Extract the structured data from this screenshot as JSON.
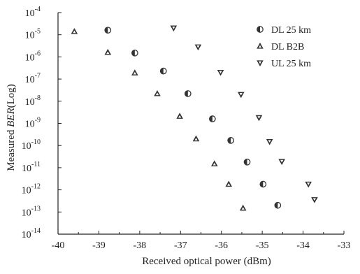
{
  "chart_data": {
    "type": "scatter",
    "xlabel": "Received optical power (dBm)",
    "ylabel_prefix": "Measured ",
    "ylabel_italic": "BER",
    "ylabel_suffix": "(Log)",
    "xlim": [
      -40,
      -33
    ],
    "ylim_exp": [
      -14,
      -4
    ],
    "y_scale": "log",
    "grid": false,
    "legend_position": "top-right",
    "x_ticks": [
      "-40",
      "-39",
      "-38",
      "-37",
      "-36",
      "-35",
      "-34",
      "-33"
    ],
    "y_ticks": [
      {
        "base": "10",
        "exp": "-4"
      },
      {
        "base": "10",
        "exp": "-5"
      },
      {
        "base": "10",
        "exp": "-6"
      },
      {
        "base": "10",
        "exp": "-7"
      },
      {
        "base": "10",
        "exp": "-8"
      },
      {
        "base": "10",
        "exp": "-9"
      },
      {
        "base": "10",
        "exp": "-10"
      },
      {
        "base": "10",
        "exp": "-11"
      },
      {
        "base": "10",
        "exp": "-12"
      },
      {
        "base": "10",
        "exp": "-13"
      },
      {
        "base": "10",
        "exp": "-14"
      }
    ],
    "series": [
      {
        "name": "DL 25 km",
        "marker": "half-circle",
        "points": [
          {
            "x": -38.78,
            "y": 1.6e-05
          },
          {
            "x": -38.12,
            "y": 1.5e-06
          },
          {
            "x": -37.42,
            "y": 2.3e-07
          },
          {
            "x": -36.82,
            "y": 2.2e-08
          },
          {
            "x": -36.22,
            "y": 1.6e-09
          },
          {
            "x": -35.77,
            "y": 1.7e-10
          },
          {
            "x": -35.37,
            "y": 1.8e-11
          },
          {
            "x": -34.98,
            "y": 1.8e-12
          },
          {
            "x": -34.62,
            "y": 2e-13
          }
        ]
      },
      {
        "name": "DL B2B",
        "marker": "triangle-up",
        "points": [
          {
            "x": -39.6,
            "y": 1.4e-05
          },
          {
            "x": -38.78,
            "y": 1.6e-06
          },
          {
            "x": -38.12,
            "y": 1.9e-07
          },
          {
            "x": -37.57,
            "y": 2.2e-08
          },
          {
            "x": -37.02,
            "y": 2.1e-09
          },
          {
            "x": -36.62,
            "y": 2e-10
          },
          {
            "x": -36.17,
            "y": 1.5e-11
          },
          {
            "x": -35.82,
            "y": 1.8e-12
          },
          {
            "x": -35.47,
            "y": 1.5e-13
          }
        ]
      },
      {
        "name": "UL 25 km",
        "marker": "triangle-down",
        "points": [
          {
            "x": -37.17,
            "y": 2e-05
          },
          {
            "x": -36.57,
            "y": 2.8e-06
          },
          {
            "x": -36.02,
            "y": 2e-07
          },
          {
            "x": -35.52,
            "y": 2e-08
          },
          {
            "x": -35.08,
            "y": 1.8e-09
          },
          {
            "x": -34.82,
            "y": 1.5e-10
          },
          {
            "x": -34.52,
            "y": 1.9e-11
          },
          {
            "x": -33.87,
            "y": 1.8e-12
          },
          {
            "x": -33.72,
            "y": 3.6e-13
          }
        ]
      }
    ],
    "colors": {
      "axis": "#222222",
      "marker_fill": "#333333",
      "marker_light": "#ffffff"
    }
  }
}
